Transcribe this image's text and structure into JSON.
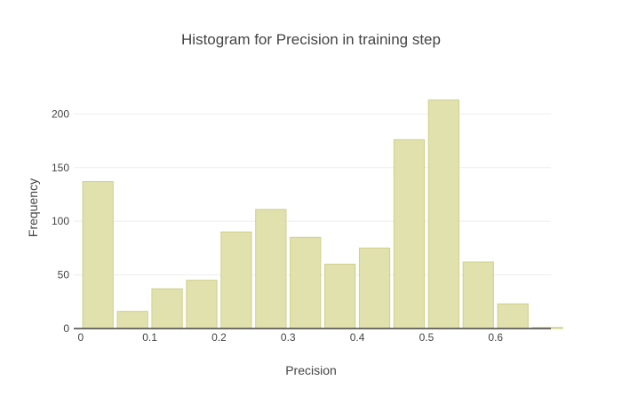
{
  "chart_data": {
    "type": "bar",
    "title": "Histogram for Precision in training step",
    "xlabel": "Precision",
    "ylabel": "Frequency",
    "x_bin_starts": [
      0,
      0.05,
      0.1,
      0.15,
      0.2,
      0.25,
      0.3,
      0.35,
      0.4,
      0.45,
      0.5,
      0.55,
      0.6,
      0.65
    ],
    "bin_width": 0.05,
    "values": [
      137,
      16,
      37,
      45,
      90,
      111,
      85,
      60,
      75,
      176,
      213,
      62,
      23,
      1
    ],
    "xlim": [
      -0.01,
      0.68
    ],
    "ylim": [
      0,
      240
    ],
    "x_ticks": [
      0,
      0.1,
      0.2,
      0.3,
      0.4,
      0.5,
      0.6
    ],
    "x_tick_labels": [
      "0",
      "0.1",
      "0.2",
      "0.3",
      "0.4",
      "0.5",
      "0.6"
    ],
    "y_ticks": [
      0,
      50,
      100,
      150,
      200
    ],
    "y_tick_labels": [
      "0",
      "50",
      "100",
      "150",
      "200"
    ],
    "grid": "horizontal",
    "colors": {
      "bar_fill": "#e0e1ad",
      "bar_stroke": "#cfd08a",
      "grid": "#eeeeee",
      "axis_line": "#444444",
      "text": "#444444"
    }
  }
}
